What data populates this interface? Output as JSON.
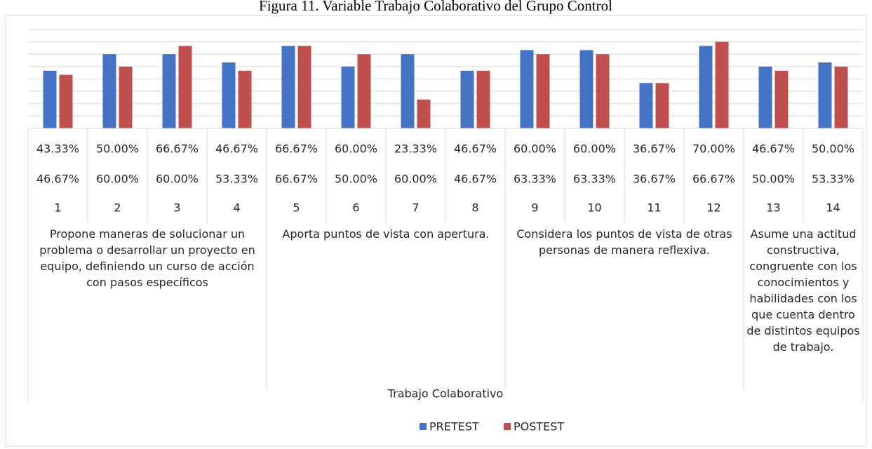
{
  "chart_data": {
    "type": "bar",
    "title": "Figura 11. Variable Trabajo Colaborativo del Grupo Control",
    "categories": [
      "1",
      "2",
      "3",
      "4",
      "5",
      "6",
      "7",
      "8",
      "9",
      "10",
      "11",
      "12",
      "13",
      "14"
    ],
    "groups": [
      {
        "label": "Propone maneras de solucionar un problema o desarrollar un proyecto en equipo, definiendo un curso de acción con pasos específicos",
        "span": 4
      },
      {
        "label": "Aporta puntos de vista con apertura.",
        "span": 4
      },
      {
        "label": "Considera los puntos de vista de otras personas de manera reflexiva.",
        "span": 4
      },
      {
        "label": "Asume una actitud constructiva, congruente con los conocimientos y habilidades con los que cuenta dentro de distintos equipos de trabajo.",
        "span": 2
      }
    ],
    "xlabel": "Trabajo Colaborativo",
    "series": [
      {
        "name": "PRETEST",
        "color": "#4472c4",
        "values": [
          46.67,
          60,
          60,
          53.33,
          66.67,
          50,
          60,
          46.67,
          63.33,
          63.33,
          36.67,
          66.67,
          50,
          53.33
        ],
        "value_labels": [
          "46.67%",
          "60.00%",
          "60.00%",
          "53.33%",
          "66.67%",
          "50.00%",
          "60.00%",
          "46.67%",
          "63.33%",
          "63.33%",
          "36.67%",
          "66.67%",
          "50.00%",
          "53.33%"
        ]
      },
      {
        "name": "POSTEST",
        "color": "#c0504d",
        "values": [
          43.33,
          50,
          66.67,
          46.67,
          66.67,
          60,
          23.33,
          46.67,
          60,
          60,
          36.67,
          70,
          46.67,
          50
        ],
        "value_labels": [
          "43.33%",
          "50.00%",
          "66.67%",
          "46.67%",
          "66.67%",
          "60.00%",
          "23.33%",
          "46.67%",
          "60.00%",
          "60.00%",
          "36.67%",
          "70.00%",
          "46.67%",
          "50.00%"
        ]
      }
    ],
    "ylim": [
      0,
      80
    ],
    "yticks": [
      0,
      10,
      20,
      30,
      40,
      50,
      60,
      70,
      80
    ],
    "grid": true,
    "legend": "bottom"
  }
}
